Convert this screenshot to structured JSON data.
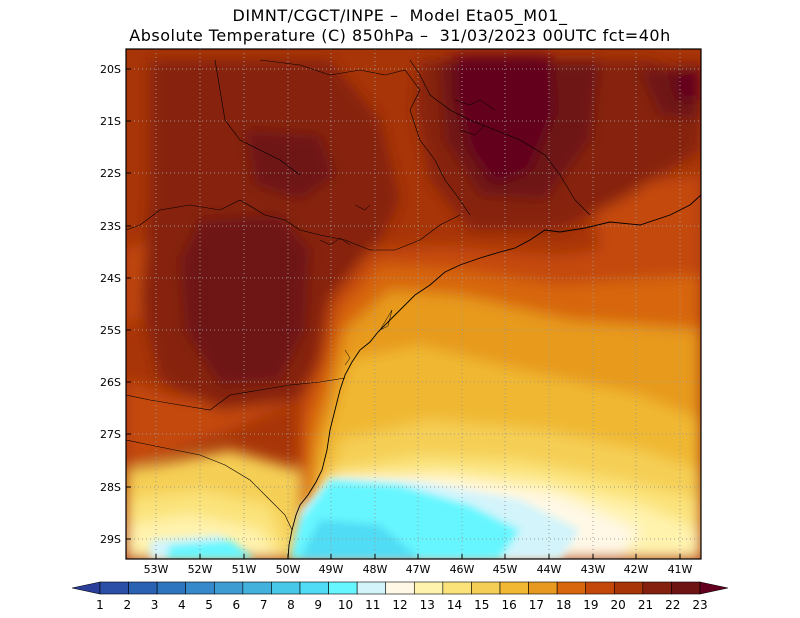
{
  "header": {
    "line1": "DIMNT/CGCT/INPE –  Model Eta05_M01_",
    "line2": "Absolute Temperature (C) 850hPa –  31/03/2023 00UTC fct=40h"
  },
  "map": {
    "lat_labels": [
      "20S",
      "21S",
      "22S",
      "23S",
      "24S",
      "25S",
      "26S",
      "27S",
      "28S",
      "29S"
    ],
    "lon_labels": [
      "53W",
      "52W",
      "51W",
      "50W",
      "49W",
      "48W",
      "47W",
      "46W",
      "45W",
      "44W",
      "43W",
      "42W",
      "41W"
    ]
  },
  "colorbar": {
    "labels": [
      "1",
      "2",
      "3",
      "4",
      "5",
      "6",
      "7",
      "8",
      "9",
      "10",
      "11",
      "12",
      "13",
      "14",
      "15",
      "16",
      "17",
      "18",
      "19",
      "20",
      "21",
      "22",
      "23"
    ],
    "colors": [
      "#2a3f9a",
      "#2b4ea6",
      "#2b61b3",
      "#2e75c0",
      "#3689ca",
      "#3d9dd3",
      "#42b2dd",
      "#47c8e8",
      "#4fdcf4",
      "#66f6ff",
      "#d3f4fb",
      "#fff8e6",
      "#fff3ae",
      "#fbe37a",
      "#f5cf55",
      "#f0b833",
      "#e79a1f",
      "#d7660d",
      "#c4480a",
      "#a83508",
      "#86200e",
      "#6e1413",
      "#64001f"
    ]
  }
}
